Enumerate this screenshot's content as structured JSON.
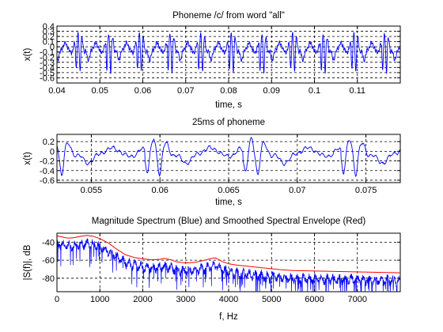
{
  "chart_data": [
    {
      "type": "line",
      "title": "Phoneme /c/ from word \"all\"",
      "xlabel": "time, s",
      "ylabel": "x(t)",
      "xlim": [
        0.04,
        0.12
      ],
      "ylim": [
        -0.7,
        0.4
      ],
      "grid": true,
      "x_ticks": [
        0.04,
        0.05,
        0.06,
        0.07,
        0.08,
        0.09,
        0.1,
        0.11
      ],
      "x_tick_labels": [
        "0.04",
        "0.05",
        "0.06",
        "0.07",
        "0.08",
        "0.09",
        "0.1",
        "0.11"
      ],
      "y_ticks": [
        0.4,
        0.3,
        0.2,
        0.1,
        0,
        -0.1,
        -0.2,
        -0.3,
        -0.4,
        -0.5,
        -0.6
      ],
      "y_tick_labels": [
        "0.4",
        "0.3",
        "0.2",
        "0.1",
        "0",
        "-0.1",
        "-0.2",
        "-0.3",
        "-0.4",
        "-0.5",
        "-0.6"
      ],
      "series": [
        {
          "color": "#0000ff",
          "pitch_period_s": 0.00714,
          "first_pulse_s": 0.0443,
          "amplitude_range": [
            -0.66,
            0.38
          ]
        }
      ]
    },
    {
      "type": "line",
      "title": "25ms of phoneme",
      "xlabel": "time, s",
      "ylabel": "x(t)",
      "xlim": [
        0.0525,
        0.0775
      ],
      "ylim": [
        -0.65,
        0.35
      ],
      "grid": true,
      "x_ticks": [
        0.055,
        0.06,
        0.065,
        0.07,
        0.075
      ],
      "x_tick_labels": [
        "0.055",
        "0.06",
        "0.065",
        "0.07",
        "0.075"
      ],
      "y_ticks": [
        0.2,
        0,
        -0.2,
        -0.4,
        -0.6
      ],
      "y_tick_labels": [
        "0.2",
        "0",
        "-0.2",
        "-0.4",
        "-0.6"
      ],
      "series": [
        {
          "color": "#0000ff",
          "pitch_period_s": 0.00714,
          "first_pulse_s": 0.0589,
          "amplitude_range": [
            -0.62,
            0.3
          ]
        }
      ]
    },
    {
      "type": "line",
      "title": "Magnitude Spectrum (Blue) and Smoothed Spectral Envelope (Red)",
      "xlabel": "f, Hz",
      "ylabel": "|S(f)|, dB",
      "xlim": [
        0,
        8000
      ],
      "ylim": [
        -95,
        -30
      ],
      "grid": true,
      "x_ticks": [
        0,
        1000,
        2000,
        3000,
        4000,
        5000,
        6000,
        7000
      ],
      "x_tick_labels": [
        "0",
        "1000",
        "2000",
        "3000",
        "4000",
        "5000",
        "6000",
        "7000"
      ],
      "y_ticks": [
        -40,
        -60,
        -80
      ],
      "y_tick_labels": [
        "-40",
        "-60",
        "-80"
      ],
      "series": [
        {
          "name": "Magnitude Spectrum",
          "color": "#0000ff",
          "harmonic_spacing_hz": 140
        },
        {
          "name": "Smoothed Spectral Envelope",
          "color": "#ff0000",
          "x": [
            0,
            100,
            250,
            400,
            550,
            700,
            850,
            1000,
            1200,
            1400,
            1600,
            1800,
            2000,
            2200,
            2400,
            2500,
            2650,
            2800,
            3000,
            3200,
            3400,
            3600,
            3700,
            3850,
            4000,
            4200,
            4400,
            4600,
            4800,
            5000,
            5200,
            5500,
            6000,
            6500,
            7000,
            7500,
            8000
          ],
          "y": [
            -33,
            -34,
            -35.5,
            -35,
            -33.5,
            -32.5,
            -33.5,
            -36,
            -41,
            -48,
            -54,
            -57,
            -58.5,
            -59.5,
            -59,
            -58,
            -59.5,
            -62,
            -63,
            -62.5,
            -60.5,
            -58,
            -57.5,
            -61.5,
            -64,
            -65.5,
            -66.5,
            -67.5,
            -68.5,
            -69.5,
            -70.5,
            -71.5,
            -72,
            -72.5,
            -73,
            -73.5,
            -74
          ]
        }
      ]
    }
  ]
}
